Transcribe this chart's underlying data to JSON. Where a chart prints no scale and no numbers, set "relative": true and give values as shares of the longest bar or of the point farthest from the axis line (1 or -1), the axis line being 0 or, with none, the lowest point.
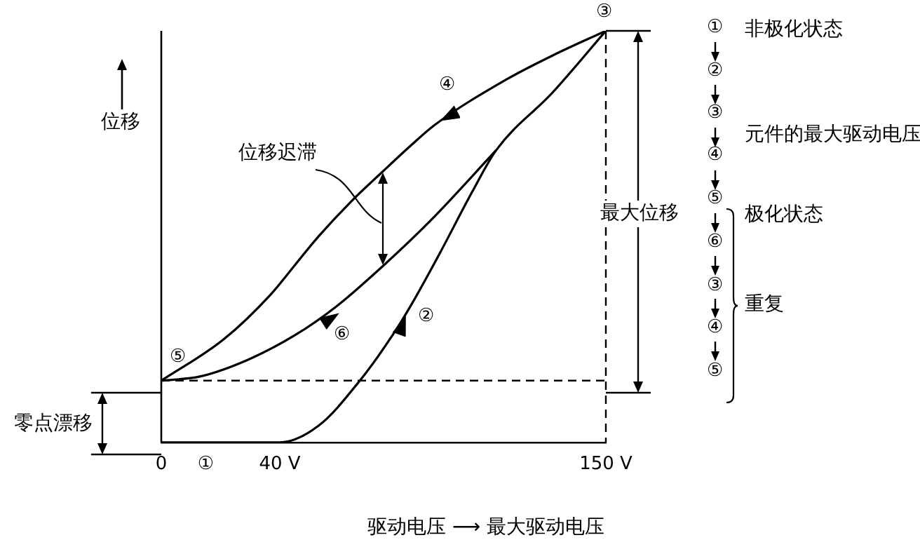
{
  "chart_data": {
    "type": "line",
    "relative": true,
    "xlabel": "驱动电压 ⟶ 最大驱动电压",
    "ylabel": "位移",
    "xlim": [
      0,
      150
    ],
    "xticks": [
      0,
      {
        "value": 15,
        "label": "①"
      },
      {
        "value": 40,
        "label": "40 V"
      },
      {
        "value": 150,
        "label": "150 V"
      }
    ],
    "marker": "none",
    "line_style": "solid",
    "series": [
      {
        "color": "#000000",
        "x": [
          0,
          40,
          53,
          67,
          78,
          84,
          94,
          105,
          113,
          132,
          150
        ],
        "values": [
          0,
          0,
          0.04,
          0.15,
          0.26,
          0.33,
          0.46,
          0.61,
          0.71,
          0.85,
          1
        ]
      },
      {
        "color": "#000000",
        "x": [
          0,
          13,
          29,
          45,
          59,
          75,
          91,
          113
        ],
        "values": [
          0.15,
          0.16,
          0.2,
          0.26,
          0.33,
          0.43,
          0.54,
          0.71
        ]
      },
      {
        "color": "#000000",
        "x": [
          0,
          21,
          37,
          45,
          53,
          64,
          75,
          84,
          92,
          116,
          132,
          150
        ],
        "values": [
          0.15,
          0.25,
          0.36,
          0.43,
          0.5,
          0.585,
          0.66,
          0.72,
          0.77,
          0.88,
          0.94,
          1
        ]
      }
    ],
    "ref_lines": [
      {
        "axis": "y",
        "value": 0.15,
        "line_style": "dashed"
      },
      {
        "axis": "x",
        "value": 150,
        "line_style": "dashed"
      }
    ],
    "annotations": [
      "②",
      "③",
      "④",
      "⑤",
      "⑥",
      "位移迟滞",
      "最大位移",
      "零点漂移",
      "①",
      "②",
      "③",
      "④",
      "⑤",
      "⑥",
      "③",
      "④",
      "⑤",
      "非极化状态",
      "元件的最大驱动电压",
      "极化状态",
      "重复"
    ]
  }
}
